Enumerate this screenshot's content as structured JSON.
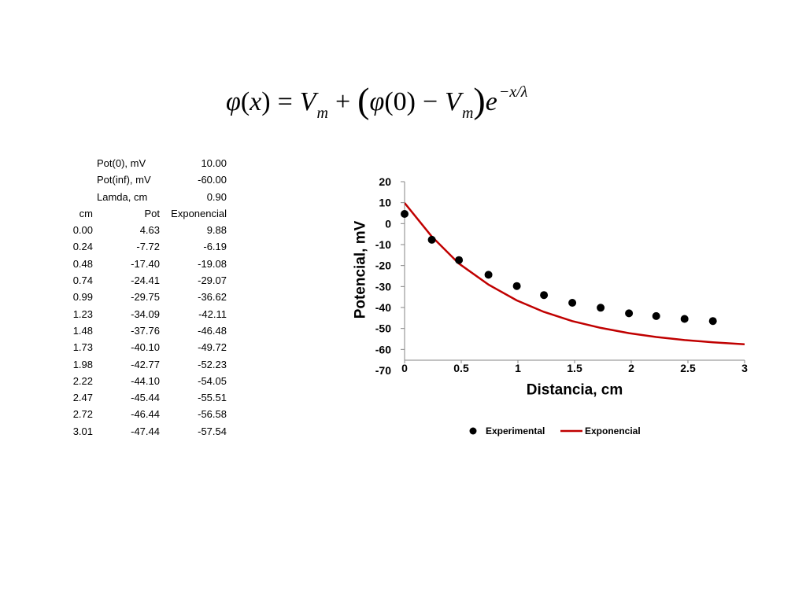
{
  "formula": {
    "phi": "φ",
    "lp1": "(",
    "x": "x",
    "rp1": ")",
    "equals": "=",
    "V": "V",
    "m": "m",
    "plus": "+",
    "lparen": "(",
    "phi0": "φ",
    "arg_0": "(0)",
    "minus": "−",
    "V2": "V",
    "m2": "m",
    "rparen": ")",
    "e": "e",
    "exponent": "−x/λ"
  },
  "table": {
    "parameters": [
      {
        "label": "Pot(0), mV",
        "value": "10.00"
      },
      {
        "label": "Pot(inf), mV",
        "value": "-60.00"
      },
      {
        "label": "Lamda, cm",
        "value": "0.90"
      }
    ],
    "headers": {
      "cm": "cm",
      "pot": "Pot",
      "exponencial": "Exponencial"
    },
    "rows": [
      {
        "cm": "0.00",
        "pot": "4.63",
        "exponencial": "9.88"
      },
      {
        "cm": "0.24",
        "pot": "-7.72",
        "exponencial": "-6.19"
      },
      {
        "cm": "0.48",
        "pot": "-17.40",
        "exponencial": "-19.08"
      },
      {
        "cm": "0.74",
        "pot": "-24.41",
        "exponencial": "-29.07"
      },
      {
        "cm": "0.99",
        "pot": "-29.75",
        "exponencial": "-36.62"
      },
      {
        "cm": "1.23",
        "pot": "-34.09",
        "exponencial": "-42.11"
      },
      {
        "cm": "1.48",
        "pot": "-37.76",
        "exponencial": "-46.48"
      },
      {
        "cm": "1.73",
        "pot": "-40.10",
        "exponencial": "-49.72"
      },
      {
        "cm": "1.98",
        "pot": "-42.77",
        "exponencial": "-52.23"
      },
      {
        "cm": "2.22",
        "pot": "-44.10",
        "exponencial": "-54.05"
      },
      {
        "cm": "2.47",
        "pot": "-45.44",
        "exponencial": "-55.51"
      },
      {
        "cm": "2.72",
        "pot": "-46.44",
        "exponencial": "-56.58"
      },
      {
        "cm": "3.01",
        "pot": "-47.44",
        "exponencial": "-57.54"
      }
    ]
  },
  "chart_data": {
    "type": "scatter",
    "xlabel": "Distancia, cm",
    "ylabel": "Potencial, mV",
    "xlim": [
      0,
      3
    ],
    "ylim": [
      -70,
      20
    ],
    "x_ticks": [
      0,
      0.5,
      1,
      1.5,
      2,
      2.5,
      3
    ],
    "y_ticks": [
      20,
      10,
      0,
      -10,
      -20,
      -30,
      -40,
      -50,
      -60,
      -70
    ],
    "grid": false,
    "legend": "bottom",
    "series": [
      {
        "name": "Experimental",
        "type": "scatter",
        "color": "#000000",
        "x": [
          0.0,
          0.24,
          0.48,
          0.74,
          0.99,
          1.23,
          1.48,
          1.73,
          1.98,
          2.22,
          2.47,
          2.72
        ],
        "y": [
          4.63,
          -7.72,
          -17.4,
          -24.41,
          -29.75,
          -34.09,
          -37.76,
          -40.1,
          -42.77,
          -44.1,
          -45.44,
          -46.44
        ]
      },
      {
        "name": "Exponencial",
        "type": "line",
        "color": "#c00000",
        "x": [
          0.0,
          0.24,
          0.48,
          0.74,
          0.99,
          1.23,
          1.48,
          1.73,
          1.98,
          2.22,
          2.47,
          2.72,
          3.01
        ],
        "y": [
          9.88,
          -6.19,
          -19.08,
          -29.07,
          -36.62,
          -42.11,
          -46.48,
          -49.72,
          -52.23,
          -54.05,
          -55.51,
          -56.58,
          -57.54
        ]
      }
    ]
  }
}
